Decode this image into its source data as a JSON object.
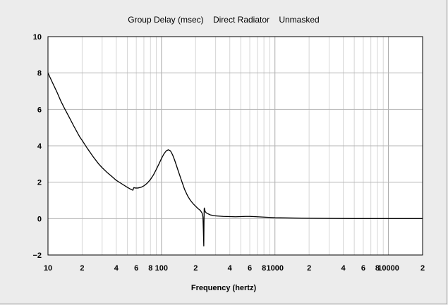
{
  "chart_data": {
    "type": "line",
    "title": "Group Delay (msec)    Direct Radiator    Unmasked",
    "xlabel": "Frequency (hertz)",
    "ylabel": "",
    "x_scale": "log",
    "xlim": [
      10,
      20000
    ],
    "ylim": [
      -2,
      10
    ],
    "y_ticks": [
      -2,
      0,
      2,
      4,
      6,
      8,
      10
    ],
    "y_tick_labels": [
      "−2",
      "0",
      "2",
      "4",
      "6",
      "8",
      "10"
    ],
    "x_ticks": [
      10,
      20,
      40,
      60,
      80,
      100,
      200,
      400,
      600,
      800,
      1000,
      2000,
      4000,
      6000,
      8000,
      10000,
      20000
    ],
    "x_tick_labels": [
      "10",
      "2",
      "4",
      "6",
      "8",
      "100",
      "2",
      "4",
      "6",
      "8",
      "1000",
      "2",
      "4",
      "6",
      "8",
      "10000",
      "2"
    ],
    "grid": true,
    "series": [
      {
        "color": "#000000",
        "x": [
          10,
          11,
          12,
          13,
          14,
          15,
          17,
          19,
          20,
          22,
          25,
          28,
          30,
          33,
          36,
          40,
          45,
          50,
          53,
          55,
          56,
          57,
          59,
          62,
          66,
          70,
          75,
          80,
          85,
          90,
          95,
          100,
          105,
          110,
          115,
          120,
          125,
          130,
          135,
          140,
          150,
          160,
          170,
          180,
          190,
          200,
          210,
          220,
          228,
          232,
          234,
          236,
          237,
          238,
          239,
          240,
          241,
          243,
          245,
          250,
          260,
          270,
          300,
          350,
          400,
          450,
          500,
          550,
          600,
          700,
          800,
          1000,
          1500,
          2000,
          3000,
          5000,
          10000,
          20000
        ],
        "y": [
          8.0,
          7.45,
          6.95,
          6.45,
          6.05,
          5.7,
          5.05,
          4.5,
          4.3,
          3.9,
          3.4,
          3.0,
          2.8,
          2.55,
          2.35,
          2.1,
          1.9,
          1.72,
          1.63,
          1.58,
          1.56,
          1.7,
          1.68,
          1.68,
          1.72,
          1.8,
          1.95,
          2.15,
          2.4,
          2.7,
          3.0,
          3.3,
          3.55,
          3.72,
          3.78,
          3.72,
          3.52,
          3.25,
          2.95,
          2.65,
          2.1,
          1.6,
          1.25,
          1.0,
          0.82,
          0.68,
          0.55,
          0.45,
          0.3,
          0.1,
          -0.6,
          -1.5,
          -0.2,
          0.55,
          0.58,
          0.5,
          0.45,
          0.4,
          0.35,
          0.3,
          0.25,
          0.2,
          0.15,
          0.12,
          0.11,
          0.1,
          0.11,
          0.12,
          0.12,
          0.1,
          0.08,
          0.05,
          0.03,
          0.02,
          0.01,
          0.0,
          0.0,
          0.0
        ]
      }
    ]
  }
}
